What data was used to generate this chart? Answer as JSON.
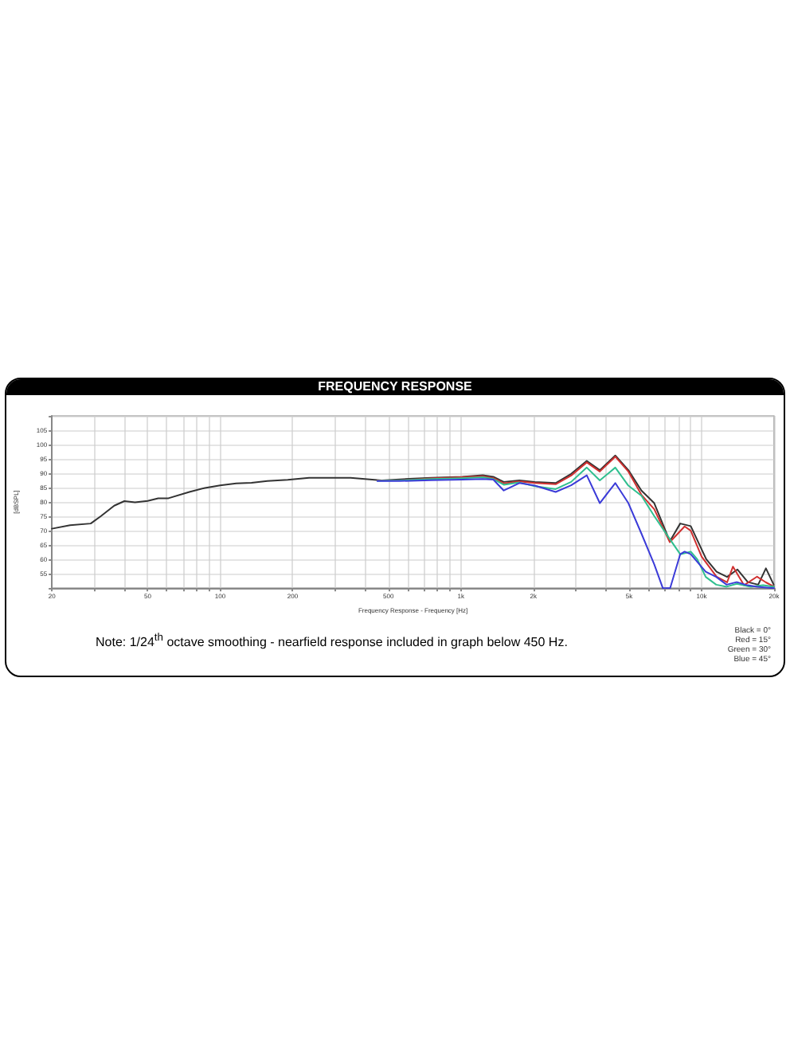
{
  "chart_data": {
    "type": "line",
    "title": "FREQUENCY RESPONSE",
    "xlabel": "Frequency Response - Frequency [Hz]",
    "ylabel": "[dBSPL]",
    "log": "x",
    "xlim": [
      20,
      20000
    ],
    "xticks": [
      20,
      {
        "value": 30,
        "label": null
      },
      {
        "value": 40,
        "label": null
      },
      50,
      {
        "value": 60,
        "label": null
      },
      {
        "value": 70,
        "label": null
      },
      {
        "value": 80,
        "label": null
      },
      {
        "value": 90,
        "label": null
      },
      100,
      200,
      {
        "value": 300,
        "label": null
      },
      {
        "value": 400,
        "label": null
      },
      500,
      {
        "value": 600,
        "label": null
      },
      {
        "value": 700,
        "label": null
      },
      {
        "value": 800,
        "label": null
      },
      {
        "value": 900,
        "label": null
      },
      {
        "value": 1000,
        "label": "1k"
      },
      {
        "value": 2000,
        "label": "2k"
      },
      {
        "value": 3000,
        "label": null
      },
      {
        "value": 4000,
        "label": null
      },
      {
        "value": 5000,
        "label": "5k"
      },
      {
        "value": 6000,
        "label": null
      },
      {
        "value": 7000,
        "label": null
      },
      {
        "value": 8000,
        "label": null
      },
      {
        "value": 9000,
        "label": null
      },
      {
        "value": 10000,
        "label": "10k"
      },
      {
        "value": 20000,
        "label": "20k"
      }
    ],
    "ylim": [
      50,
      110
    ],
    "yticks": [
      {
        "value": 50,
        "label": null
      },
      55,
      60,
      65,
      70,
      75,
      80,
      85,
      90,
      95,
      100,
      105,
      {
        "value": 110,
        "label": null
      }
    ],
    "grid": true,
    "marker": "none",
    "line_style": "solid",
    "series": [
      {
        "color": "#333333",
        "x": [
          20,
          23.8,
          29,
          32,
          36.3,
          40,
          44.3,
          50,
          55.3,
          61,
          74.5,
          86.5,
          100,
          116.6,
          135,
          157,
          191,
          234,
          285,
          348,
          469,
          558,
          752,
          1012,
          1233,
          1364,
          1507,
          1750,
          2028,
          2476,
          2871,
          3334,
          3777,
          4379,
          4964,
          5624,
          6357,
          7378,
          8150,
          9015,
          10450,
          11540,
          12760,
          14090,
          15560,
          17180,
          18500,
          19930
        ],
        "values": [
          70.7,
          71.9,
          72.5,
          75.1,
          78.7,
          80.3,
          79.9,
          80.4,
          81.3,
          81.3,
          83.5,
          84.9,
          85.8,
          86.5,
          86.7,
          87.3,
          87.7,
          88.4,
          88.4,
          88.4,
          87.5,
          87.9,
          88.4,
          88.8,
          89.3,
          88.8,
          87,
          87.5,
          87,
          86.6,
          89.8,
          94.3,
          91.1,
          96.2,
          91.1,
          84,
          79.6,
          66.3,
          72.5,
          71.6,
          60.1,
          55.7,
          53.9,
          56.5,
          52.1,
          51.2,
          56.9,
          51.2
        ]
      },
      {
        "color": "#d03030",
        "x": [
          450,
          558,
          752,
          1012,
          1233,
          1364,
          1507,
          1750,
          2028,
          2476,
          2871,
          3334,
          3777,
          4379,
          4964,
          5624,
          6357,
          7378,
          8500,
          9015,
          10000,
          11540,
          12760,
          13500,
          15000,
          17000,
          18500,
          20000
        ],
        "values": [
          87.5,
          87.5,
          88.2,
          88.6,
          89,
          88.3,
          86.5,
          87.2,
          86.6,
          86.2,
          89.2,
          93.8,
          90.6,
          95.8,
          90.6,
          82.5,
          77.5,
          66,
          71.5,
          70,
          61,
          54,
          52,
          57.5,
          51,
          54,
          52,
          50.5
        ]
      },
      {
        "color": "#2fbf8f",
        "x": [
          450,
          558,
          752,
          1012,
          1233,
          1364,
          1507,
          1750,
          2028,
          2476,
          2871,
          3334,
          3777,
          4379,
          4964,
          5624,
          6357,
          7378,
          8150,
          9015,
          9600,
          10400,
          11500,
          12700,
          14000,
          16000,
          18000,
          20000
        ],
        "values": [
          87.4,
          87.5,
          88,
          88.3,
          88.6,
          88,
          86,
          86.8,
          85.5,
          84.5,
          87,
          92,
          87.5,
          92,
          85.7,
          82.2,
          75.1,
          67.1,
          61.8,
          62.7,
          60,
          53.9,
          51.2,
          50.5,
          51.5,
          50.5,
          51,
          50.5
        ]
      },
      {
        "color": "#3b3bd8",
        "x": [
          450,
          558,
          752,
          1012,
          1233,
          1364,
          1507,
          1750,
          2028,
          2476,
          2871,
          3334,
          3777,
          4379,
          4964,
          5624,
          6357,
          6900,
          7400,
          8150,
          8500,
          9015,
          10400,
          11500,
          12700,
          14000,
          15500,
          17000,
          20000
        ],
        "values": [
          87.3,
          87.3,
          87.6,
          87.8,
          88,
          87.8,
          84,
          86.6,
          85.7,
          83.5,
          85.8,
          89.3,
          79.6,
          86.6,
          79.6,
          69,
          58.3,
          50,
          50,
          61.8,
          62.7,
          61.8,
          55.7,
          53.9,
          51.2,
          52.1,
          51,
          50.5,
          50
        ]
      }
    ],
    "annotations": [
      "Note: 1/24$^{th}$ octave smoothing - nearfield response included in graph below 450 Hz.",
      "Black = 0°",
      "Red = 15°",
      "Green = 30°",
      "Blue = 45°"
    ]
  }
}
